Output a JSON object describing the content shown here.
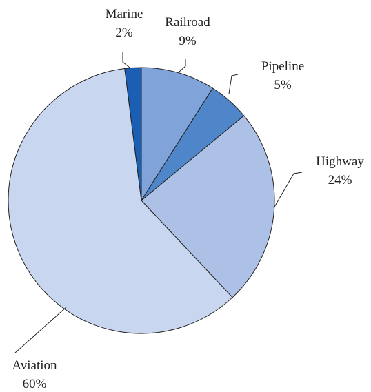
{
  "chart_data": {
    "type": "pie",
    "categories": [
      "Railroad",
      "Pipeline",
      "Highway",
      "Aviation",
      "Marine"
    ],
    "values": [
      9,
      5,
      24,
      60,
      2
    ],
    "value_labels": [
      "9%",
      "5%",
      "24%",
      "60%",
      "2%"
    ],
    "colors": [
      "#80a4da",
      "#4f86c9",
      "#adc1e6",
      "#c9d6ef",
      "#1a5fb4"
    ]
  }
}
